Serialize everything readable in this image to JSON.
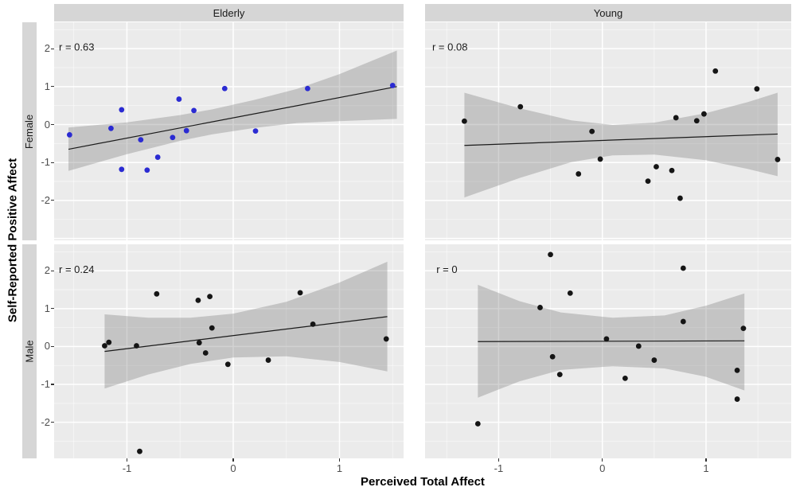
{
  "figure": {
    "x_title": "Perceived Total Affect",
    "y_title": "Self-Reported Positive Affect",
    "col_labels": [
      "Elderly",
      "Young"
    ],
    "row_labels": [
      "Female",
      "Male"
    ],
    "axes": {
      "x_ticks": [
        -1,
        0,
        1
      ],
      "y_ticks": [
        2,
        1,
        0,
        -1,
        -2
      ]
    },
    "colors": {
      "panel_bg": "#EBEBEB",
      "strip_bg": "#D6D6D6",
      "grid_major": "#FFFFFF",
      "grid_minor": "#FFFFFF",
      "ci_band": "rgba(107,107,107,0.30)",
      "fit_line": "#1A1A1A",
      "point_blue": "#2B2BD2",
      "point_black": "#151515",
      "tick_text": "#4D4D4D",
      "r_label_text": "#1A1A1A"
    }
  },
  "chart_data": [
    {
      "type": "scatter",
      "facet_col": "Elderly",
      "facet_row": "Female",
      "r_label": {
        "text": "r = 0.63",
        "x": -1.64,
        "y": 2.02
      },
      "point_color": "#2B2BD2",
      "xlim": [
        -1.685,
        1.603
      ],
      "ylim": [
        -3.05,
        2.695
      ],
      "x_ticks": [
        -1,
        0,
        1
      ],
      "y_ticks": [
        2,
        1,
        0,
        -1,
        -2
      ],
      "points": [
        [
          -1.54,
          -0.27
        ],
        [
          -1.15,
          -0.1
        ],
        [
          -1.05,
          0.39
        ],
        [
          -1.05,
          -1.18
        ],
        [
          -0.87,
          -0.4
        ],
        [
          -0.81,
          -1.2
        ],
        [
          -0.71,
          -0.86
        ],
        [
          -0.57,
          -0.34
        ],
        [
          -0.51,
          0.67
        ],
        [
          -0.44,
          -0.16
        ],
        [
          -0.37,
          0.37
        ],
        [
          -0.08,
          0.95
        ],
        [
          0.21,
          -0.17
        ],
        [
          0.7,
          0.95
        ],
        [
          1.5,
          1.03
        ]
      ],
      "fit_line": [
        [
          -1.55,
          -0.65
        ],
        [
          1.54,
          1.0
        ]
      ],
      "ci_band": [
        [
          -1.55,
          -1.22,
          -0.08
        ],
        [
          -1.0,
          -0.78,
          0.06
        ],
        [
          -0.5,
          -0.43,
          0.25
        ],
        [
          -0.2,
          -0.26,
          0.4
        ],
        [
          0.2,
          -0.09,
          0.65
        ],
        [
          0.6,
          0.04,
          0.94
        ],
        [
          1.0,
          0.09,
          1.33
        ],
        [
          1.54,
          0.15,
          1.95
        ]
      ]
    },
    {
      "type": "scatter",
      "facet_col": "Young",
      "facet_row": "Female",
      "r_label": {
        "text": "r = 0.08",
        "x": -1.64,
        "y": 2.02
      },
      "point_color": "#151515",
      "xlim": [
        -1.709,
        1.821
      ],
      "ylim": [
        -3.05,
        2.695
      ],
      "x_ticks": [
        -1,
        0,
        1
      ],
      "y_ticks": [
        2,
        1,
        0,
        -1,
        -2
      ],
      "points": [
        [
          -1.33,
          0.09
        ],
        [
          -0.79,
          0.47
        ],
        [
          -0.23,
          -1.3
        ],
        [
          -0.1,
          -0.18
        ],
        [
          -0.02,
          -0.91
        ],
        [
          0.44,
          -1.49
        ],
        [
          0.52,
          -1.11
        ],
        [
          0.67,
          -1.21
        ],
        [
          0.75,
          -1.94
        ],
        [
          0.71,
          0.18
        ],
        [
          0.91,
          0.1
        ],
        [
          0.98,
          0.28
        ],
        [
          1.09,
          1.41
        ],
        [
          1.49,
          0.94
        ],
        [
          1.69,
          -0.92
        ]
      ],
      "fit_line": [
        [
          -1.33,
          -0.55
        ],
        [
          1.69,
          -0.25
        ]
      ],
      "ci_band": [
        [
          -1.33,
          -1.92,
          0.84
        ],
        [
          -0.8,
          -1.41,
          0.43
        ],
        [
          -0.3,
          -0.99,
          0.11
        ],
        [
          0.1,
          -0.81,
          -0.01
        ],
        [
          0.5,
          -0.79,
          0.05
        ],
        [
          1.0,
          -0.94,
          0.3
        ],
        [
          1.4,
          -1.17,
          0.59
        ],
        [
          1.69,
          -1.36,
          0.84
        ]
      ]
    },
    {
      "type": "scatter",
      "facet_col": "Elderly",
      "facet_row": "Male",
      "r_label": {
        "text": "r = 0.24",
        "x": -1.64,
        "y": 2.02
      },
      "point_color": "#151515",
      "xlim": [
        -1.685,
        1.603
      ],
      "ylim": [
        -2.955,
        2.7
      ],
      "x_ticks": [
        -1,
        0,
        1
      ],
      "y_ticks": [
        2,
        1,
        0,
        -1,
        -2
      ],
      "points": [
        [
          -1.21,
          0.02
        ],
        [
          -1.17,
          0.11
        ],
        [
          -0.91,
          0.02
        ],
        [
          -0.88,
          -2.77
        ],
        [
          -0.72,
          1.39
        ],
        [
          -0.33,
          1.22
        ],
        [
          -0.22,
          1.32
        ],
        [
          -0.32,
          0.1
        ],
        [
          -0.26,
          -0.17
        ],
        [
          -0.2,
          0.49
        ],
        [
          -0.05,
          -0.47
        ],
        [
          0.33,
          -0.36
        ],
        [
          0.63,
          1.42
        ],
        [
          0.75,
          0.59
        ],
        [
          1.44,
          0.2
        ]
      ],
      "fit_line": [
        [
          -1.21,
          -0.13
        ],
        [
          1.45,
          0.79
        ]
      ],
      "ci_band": [
        [
          -1.21,
          -1.11,
          0.85
        ],
        [
          -0.8,
          -0.74,
          0.76
        ],
        [
          -0.4,
          -0.46,
          0.76
        ],
        [
          0.0,
          -0.29,
          0.87
        ],
        [
          0.5,
          -0.26,
          1.18
        ],
        [
          1.0,
          -0.41,
          1.69
        ],
        [
          1.45,
          -0.66,
          2.24
        ]
      ]
    },
    {
      "type": "scatter",
      "facet_col": "Young",
      "facet_row": "Male",
      "r_label": {
        "text": "r = 0",
        "x": -1.6,
        "y": 2.02
      },
      "point_color": "#151515",
      "xlim": [
        -1.709,
        1.821
      ],
      "ylim": [
        -2.955,
        2.7
      ],
      "x_ticks": [
        -1,
        0,
        1
      ],
      "y_ticks": [
        2,
        1,
        0,
        -1,
        -2
      ],
      "points": [
        [
          -1.2,
          -2.04
        ],
        [
          -0.6,
          1.03
        ],
        [
          -0.5,
          2.43
        ],
        [
          -0.48,
          -0.27
        ],
        [
          -0.41,
          -0.74
        ],
        [
          -0.31,
          1.41
        ],
        [
          0.04,
          0.2
        ],
        [
          0.22,
          -0.84
        ],
        [
          0.35,
          0.01
        ],
        [
          0.5,
          -0.36
        ],
        [
          0.78,
          2.07
        ],
        [
          0.78,
          0.66
        ],
        [
          1.3,
          -0.63
        ],
        [
          1.3,
          -1.39
        ],
        [
          1.36,
          0.48
        ]
      ],
      "fit_line": [
        [
          -1.2,
          0.13
        ],
        [
          1.37,
          0.15
        ]
      ],
      "ci_band": [
        [
          -1.2,
          -1.35,
          1.63
        ],
        [
          -0.8,
          -0.92,
          1.2
        ],
        [
          -0.4,
          -0.62,
          0.9
        ],
        [
          0.1,
          -0.52,
          0.76
        ],
        [
          0.6,
          -0.58,
          0.82
        ],
        [
          1.0,
          -0.8,
          1.08
        ],
        [
          1.37,
          -1.16,
          1.4
        ]
      ]
    }
  ]
}
